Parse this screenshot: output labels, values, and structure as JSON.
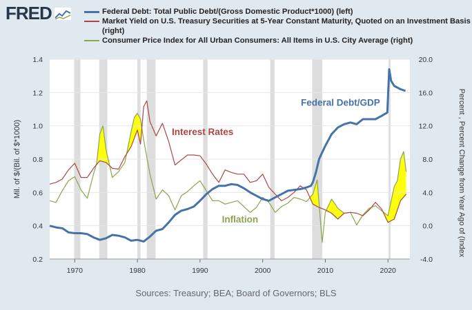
{
  "header": {
    "logo_text": "FRED",
    "legend": [
      {
        "label": "Federal Debt: Total Public Debt/(Gross Domestic Product*1000) (left)",
        "color": "#4572a7",
        "weight": 3
      },
      {
        "label": "Market Yield on U.S. Treasury Securities at 5-Year Constant Maturity, Quoted on an Investment Basis (right)",
        "color": "#aa4643",
        "weight": 1.2
      },
      {
        "label": "Consumer Price Index for All Urban Consumers: All Items in U.S. City Average (right)",
        "color": "#89a54e",
        "weight": 1.2
      }
    ]
  },
  "footer": {
    "source": "Sources: Treasury; BEA; Board of Governors; BLS"
  },
  "chart_data": {
    "type": "line",
    "title": "",
    "xlim": [
      1966,
      2023.5
    ],
    "x_ticks": [
      1970,
      1980,
      1990,
      2000,
      2010,
      2020
    ],
    "y_left": {
      "label": "Mil. of $/(Bil. of $*1000)",
      "lim": [
        0.2,
        1.4
      ],
      "ticks": [
        "0.2",
        "0.4",
        "0.6",
        "0.8",
        "1.0",
        "1.2",
        "1.4"
      ]
    },
    "y_right": {
      "label": "Percent , Percent Change from Year Ago of (Index",
      "lim": [
        -4,
        20
      ],
      "ticks": [
        "-4.0",
        "0.0",
        "4.0",
        "8.0",
        "12.0",
        "16.0",
        "20.0"
      ]
    },
    "recessions": [
      [
        1969.9,
        1970.9
      ],
      [
        1973.9,
        1975.2
      ],
      [
        1980.0,
        1980.5
      ],
      [
        1981.5,
        1982.9
      ],
      [
        1990.5,
        1991.2
      ],
      [
        2001.2,
        2001.9
      ],
      [
        2007.9,
        2009.5
      ],
      [
        2020.1,
        2020.4
      ]
    ],
    "series": [
      {
        "name": "Federal Debt/GDP",
        "axis": "left",
        "color": "#4572a7",
        "width": 3,
        "x": [
          1966,
          1967,
          1968,
          1969,
          1970,
          1971,
          1972,
          1973,
          1974,
          1975,
          1976,
          1977,
          1978,
          1979,
          1980,
          1981,
          1982,
          1983,
          1984,
          1985,
          1986,
          1987,
          1988,
          1989,
          1990,
          1991,
          1992,
          1993,
          1994,
          1995,
          1996,
          1997,
          1998,
          1999,
          2000,
          2001,
          2002,
          2003,
          2004,
          2005,
          2006,
          2007,
          2007.7,
          2008,
          2008.5,
          2009,
          2009.5,
          2010,
          2011,
          2012,
          2013,
          2014,
          2015,
          2016,
          2017,
          2018,
          2019,
          2019.9,
          2020.2,
          2020.5,
          2021,
          2022,
          2022.8
        ],
        "y": [
          0.4,
          0.39,
          0.385,
          0.36,
          0.355,
          0.355,
          0.35,
          0.33,
          0.315,
          0.325,
          0.345,
          0.34,
          0.33,
          0.31,
          0.315,
          0.305,
          0.335,
          0.37,
          0.38,
          0.42,
          0.465,
          0.49,
          0.5,
          0.515,
          0.55,
          0.59,
          0.62,
          0.64,
          0.64,
          0.65,
          0.645,
          0.625,
          0.6,
          0.58,
          0.56,
          0.55,
          0.57,
          0.59,
          0.61,
          0.615,
          0.62,
          0.63,
          0.64,
          0.66,
          0.72,
          0.8,
          0.84,
          0.88,
          0.95,
          0.99,
          1.01,
          1.02,
          1.01,
          1.04,
          1.04,
          1.04,
          1.06,
          1.08,
          1.34,
          1.27,
          1.24,
          1.22,
          1.21
        ]
      },
      {
        "name": "Interest Rates",
        "axis": "right",
        "color": "#aa4643",
        "width": 1.2,
        "x": [
          1966,
          1967,
          1968,
          1969,
          1970,
          1971,
          1972,
          1973,
          1974,
          1975,
          1976,
          1977,
          1978,
          1979,
          1980,
          1980.5,
          1981,
          1981.5,
          1982,
          1983,
          1984,
          1985,
          1986,
          1987,
          1988,
          1989,
          1990,
          1991,
          1992,
          1993,
          1994,
          1995,
          1996,
          1997,
          1998,
          1999,
          2000,
          2001,
          2002,
          2003,
          2004,
          2005,
          2006,
          2007,
          2008,
          2009,
          2010,
          2011,
          2012,
          2013,
          2014,
          2015,
          2016,
          2017,
          2018,
          2019,
          2020,
          2021,
          2022,
          2022.9
        ],
        "y": [
          5.0,
          5.2,
          5.6,
          6.7,
          7.5,
          5.8,
          5.8,
          6.9,
          7.8,
          7.6,
          6.9,
          6.8,
          8.3,
          9.5,
          11.5,
          9.8,
          14.3,
          15.0,
          12.5,
          10.8,
          12.3,
          10.1,
          7.3,
          7.9,
          8.5,
          8.5,
          8.4,
          7.4,
          6.2,
          5.2,
          6.7,
          6.4,
          6.2,
          6.2,
          5.2,
          5.4,
          6.2,
          4.6,
          3.8,
          3.0,
          3.4,
          4.0,
          4.8,
          4.3,
          2.6,
          2.2,
          1.9,
          1.5,
          0.8,
          1.5,
          1.6,
          1.5,
          1.2,
          1.9,
          2.8,
          2.0,
          0.4,
          0.8,
          3.0,
          3.8
        ]
      },
      {
        "name": "Inflation",
        "axis": "right",
        "color": "#89a54e",
        "width": 1.2,
        "x": [
          1966,
          1967,
          1968,
          1969,
          1970,
          1971,
          1972,
          1973,
          1973.5,
          1974,
          1974.5,
          1975,
          1976,
          1977,
          1978,
          1979,
          1979.5,
          1980,
          1980.5,
          1981,
          1982,
          1983,
          1984,
          1985,
          1986,
          1987,
          1988,
          1989,
          1990,
          1991,
          1992,
          1993,
          1994,
          1995,
          1996,
          1997,
          1998,
          1999,
          2000,
          2001,
          2002,
          2003,
          2004,
          2005,
          2006,
          2007,
          2008,
          2008.7,
          2009.5,
          2010,
          2011,
          2012,
          2013,
          2014,
          2015,
          2016,
          2017,
          2018,
          2019,
          2020,
          2021,
          2021.5,
          2022,
          2022.5,
          2022.9
        ],
        "y": [
          3.0,
          2.8,
          4.2,
          5.4,
          5.9,
          4.3,
          3.3,
          6.2,
          7.5,
          11.0,
          12.0,
          9.1,
          5.8,
          6.5,
          7.6,
          11.3,
          13.0,
          13.5,
          12.8,
          10.3,
          6.2,
          3.2,
          4.3,
          3.6,
          1.9,
          3.6,
          4.1,
          4.8,
          5.4,
          4.2,
          3.0,
          3.0,
          2.6,
          2.8,
          3.0,
          2.3,
          1.6,
          2.2,
          3.4,
          2.8,
          1.6,
          2.3,
          2.7,
          3.4,
          3.2,
          2.9,
          3.8,
          5.5,
          -2.0,
          1.6,
          3.2,
          2.1,
          1.5,
          1.6,
          0.1,
          1.3,
          2.1,
          2.4,
          1.8,
          1.2,
          4.7,
          5.4,
          8.0,
          8.9,
          6.5
        ]
      }
    ],
    "annotations": [
      {
        "text": "Federal Debt/GDP",
        "color": "#4572a7",
        "x": 2006.1,
        "y_right": 14.4
      },
      {
        "text": "Interest Rates",
        "color": "#aa4643",
        "x": 1985.5,
        "y_right": 10.9
      },
      {
        "text": "Inflation",
        "color": "#89a54e",
        "x": 1993.5,
        "y_right": 0.4
      }
    ]
  }
}
